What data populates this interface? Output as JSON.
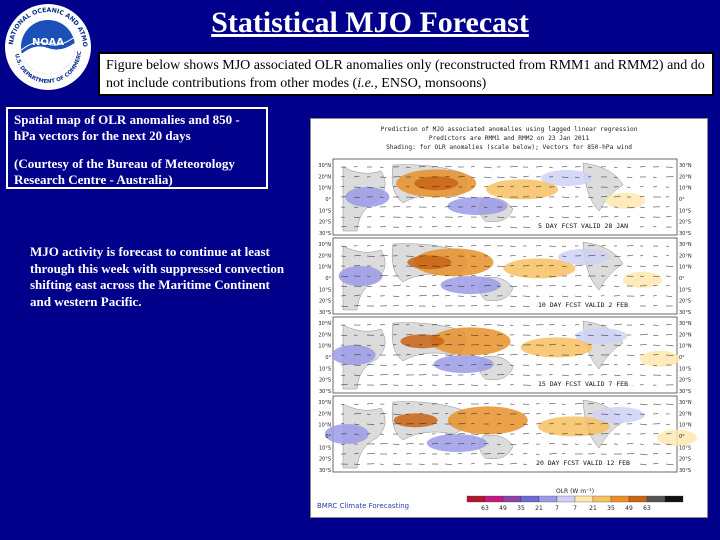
{
  "logo": {
    "name": "NOAA",
    "ring_text": "NATIONAL OCEANIC AND ATMOSPHERIC ADMINISTRATION",
    "bottom_text": "U.S. DEPARTMENT OF COMMERCE"
  },
  "title": "Statistical MJO Forecast",
  "figure_note": {
    "part1": "Figure below shows MJO associated OLR anomalies only (reconstructed from RMM1 and RMM2) and do not include contributions from other modes (",
    "italic": "i.e.",
    "part2": ", ENSO, monsoons)"
  },
  "left_box": {
    "line1": "Spatial map of OLR anomalies and  850 -hPa vectors for the next 20 days",
    "line2": "(Courtesy of the Bureau of Meteorology Research Centre - Australia)"
  },
  "activity_text": "MJO activity is forecast to continue at least through this week with suppressed convection shifting east across the Maritime Continent and western Pacific.",
  "map": {
    "header_line1": "Prediction of MJO associated anomalies using lagged linear regression",
    "header_line2": "Predictors are RMM1 and RMM2 on 23 Jan 2011",
    "header_line3": "Shading: for OLR anomalies (scale below); Vectors for 850-hPa wind",
    "panel_labels": [
      "5 DAY FCST VALID 28 JAN",
      "10 DAY FCST VALID 2 FEB",
      "15 DAY FCST VALID 7 FEB",
      "20 DAY FCST VALID 12 FEB"
    ],
    "lat_labels": [
      "30°N",
      "20°N",
      "10°N",
      "0°",
      "10°S",
      "20°S",
      "30°S"
    ],
    "colorbar_label": "OLR (W m⁻²)",
    "colorbar_ticks": [
      "63",
      "49",
      "35",
      "21",
      "7",
      "7",
      "21",
      "35",
      "49",
      "63"
    ],
    "credit": "BMRC Climate Forecasting",
    "colors": [
      "#b2182b",
      "#c51b7d",
      "#8e44ad",
      "#6a6ad0",
      "#9b9be8",
      "#d0d0f6",
      "#fde7b0",
      "#f7c060",
      "#e8902a",
      "#c86414",
      "#555555",
      "#111111"
    ]
  }
}
